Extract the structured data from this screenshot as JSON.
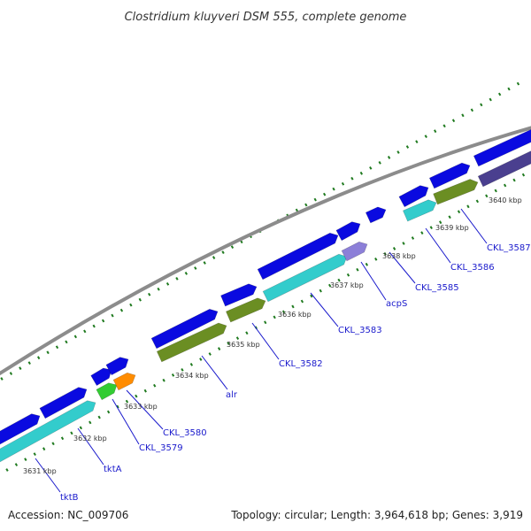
{
  "title": "Clostridium kluyveri DSM 555, complete genome",
  "footer": {
    "accession": "Accession: NC_009706",
    "summary": "Topology: circular; Length: 3,964,618 bp; Genes: 3,919"
  },
  "colors": {
    "backbone": "#8c8c8c",
    "dots": "#1f7a1f",
    "strand_blue": "#0a0ae0",
    "cyan": "#33cccc",
    "olive": "#6b8e23",
    "green": "#33cc33",
    "orange": "#ff8c00",
    "slate": "#4a3f8f",
    "lavender": "#8c7fd8",
    "label": "#1a1acc"
  },
  "position_markers": [
    {
      "label": "3631 kbp",
      "kbp": 3631
    },
    {
      "label": "3632 kbp",
      "kbp": 3632
    },
    {
      "label": "3633 kbp",
      "kbp": 3633
    },
    {
      "label": "3634 kbp",
      "kbp": 3634
    },
    {
      "label": "3635 kbp",
      "kbp": 3635
    },
    {
      "label": "3636 kbp",
      "kbp": 3636
    },
    {
      "label": "3637 kbp",
      "kbp": 3637
    },
    {
      "label": "3638 kbp",
      "kbp": 3638
    },
    {
      "label": "3639 kbp",
      "kbp": 3639
    },
    {
      "label": "3640 kbp",
      "kbp": 3640
    }
  ],
  "gene_labels": [
    {
      "name": "tktB"
    },
    {
      "name": "tktA"
    },
    {
      "name": "CKL_3579"
    },
    {
      "name": "CKL_3580"
    },
    {
      "name": "alr"
    },
    {
      "name": "CKL_3582"
    },
    {
      "name": "CKL_3583"
    },
    {
      "name": "acpS"
    },
    {
      "name": "CKL_3585"
    },
    {
      "name": "CKL_3586"
    },
    {
      "name": "CKL_3587"
    }
  ]
}
